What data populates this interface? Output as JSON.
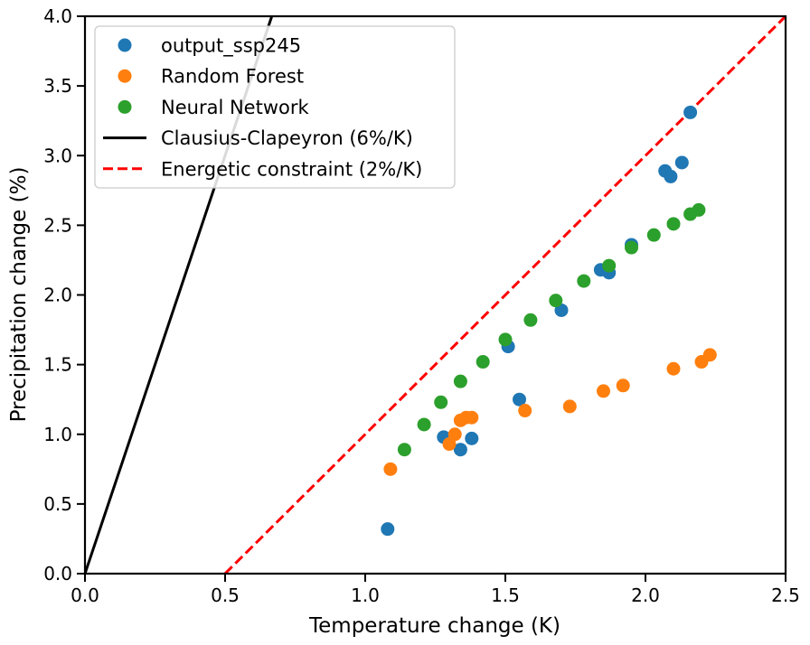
{
  "chart_data": {
    "type": "scatter",
    "xlabel": "Temperature change (K)",
    "ylabel": "Precipitation change (%)",
    "xlim": [
      0,
      2.5
    ],
    "ylim": [
      0,
      4
    ],
    "xticks": [
      "0.0",
      "0.5",
      "1.0",
      "1.5",
      "2.0",
      "2.5"
    ],
    "yticks": [
      "0.0",
      "0.5",
      "1.0",
      "1.5",
      "2.0",
      "2.5",
      "3.0",
      "3.5",
      "4.0"
    ],
    "grid": false,
    "legend_position": "top-left",
    "series": [
      {
        "name": "output_ssp245",
        "color": "#1f77b4",
        "points": [
          [
            1.08,
            0.32
          ],
          [
            1.28,
            0.98
          ],
          [
            1.34,
            0.89
          ],
          [
            1.38,
            0.97
          ],
          [
            1.51,
            1.63
          ],
          [
            1.55,
            1.25
          ],
          [
            1.7,
            1.89
          ],
          [
            1.84,
            2.18
          ],
          [
            1.87,
            2.16
          ],
          [
            1.95,
            2.36
          ],
          [
            2.07,
            2.89
          ],
          [
            2.09,
            2.85
          ],
          [
            2.13,
            2.95
          ],
          [
            2.16,
            3.31
          ]
        ]
      },
      {
        "name": "Random Forest",
        "color": "#ff7f0e",
        "points": [
          [
            1.09,
            0.75
          ],
          [
            1.3,
            0.93
          ],
          [
            1.32,
            1.0
          ],
          [
            1.34,
            1.1
          ],
          [
            1.36,
            1.12
          ],
          [
            1.38,
            1.12
          ],
          [
            1.57,
            1.17
          ],
          [
            1.73,
            1.2
          ],
          [
            1.85,
            1.31
          ],
          [
            1.92,
            1.35
          ],
          [
            2.1,
            1.47
          ],
          [
            2.2,
            1.52
          ],
          [
            2.23,
            1.57
          ]
        ]
      },
      {
        "name": "Neural Network",
        "color": "#2ca02c",
        "points": [
          [
            1.14,
            0.89
          ],
          [
            1.21,
            1.07
          ],
          [
            1.27,
            1.23
          ],
          [
            1.34,
            1.38
          ],
          [
            1.42,
            1.52
          ],
          [
            1.5,
            1.68
          ],
          [
            1.59,
            1.82
          ],
          [
            1.68,
            1.96
          ],
          [
            1.78,
            2.1
          ],
          [
            1.87,
            2.21
          ],
          [
            1.95,
            2.34
          ],
          [
            2.03,
            2.43
          ],
          [
            2.1,
            2.51
          ],
          [
            2.16,
            2.58
          ],
          [
            2.19,
            2.61
          ]
        ]
      }
    ],
    "lines": [
      {
        "name": "Clausius-Clapeyron (6%/K)",
        "color": "#000000",
        "style": "solid",
        "slope": 6,
        "x_intercept": 0
      },
      {
        "name": "Energetic constraint (2%/K)",
        "color": "#ff0000",
        "style": "dashed",
        "slope": 2,
        "x_intercept": 0.5
      }
    ]
  }
}
